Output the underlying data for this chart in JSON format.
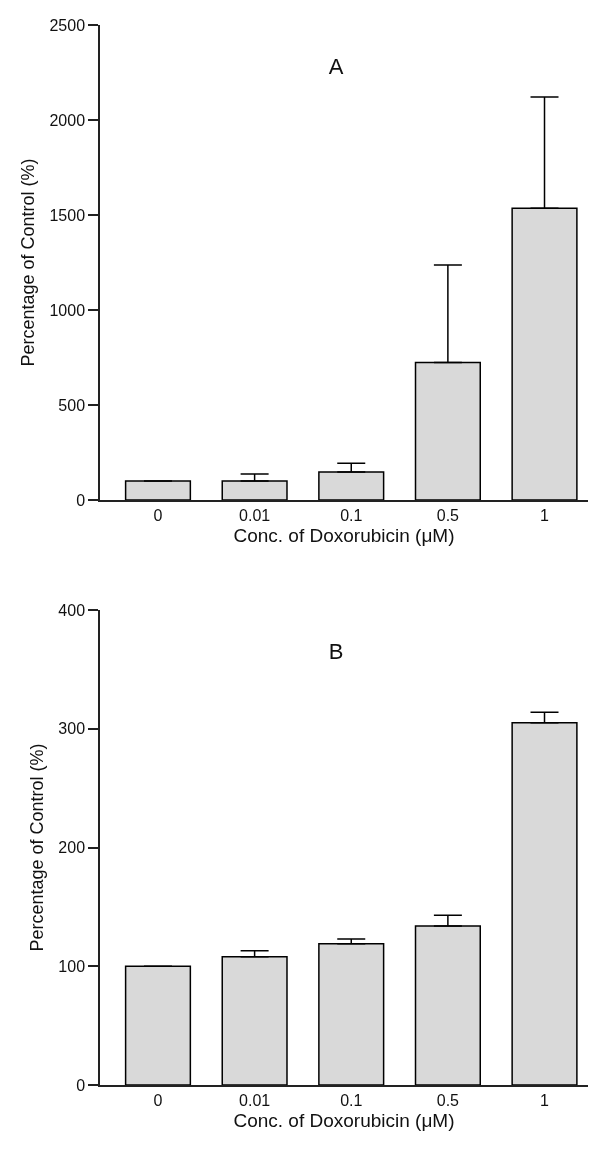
{
  "chart_data": [
    {
      "type": "bar",
      "title": "A",
      "xlabel": "Conc. of Doxorubicin (μM)",
      "ylabel": "Percentage of Control (%)",
      "categories": [
        "0",
        "0.01",
        "0.1",
        "0.5",
        "1"
      ],
      "values": [
        100,
        100,
        148,
        724,
        1536
      ],
      "errors": [
        null,
        [
          100,
          137
        ],
        [
          148,
          193
        ],
        [
          724,
          1237
        ],
        [
          1536,
          2121
        ]
      ],
      "color": "#d9d9d9",
      "ylim": [
        0,
        2500
      ],
      "yticks": [
        0,
        500,
        1000,
        1500,
        2000,
        2500
      ]
    },
    {
      "type": "bar",
      "title": "B",
      "xlabel": "Conc. of Doxorubicin (μM)",
      "ylabel": "Percentage of Control (%)",
      "categories": [
        "0",
        "0.01",
        "0.1",
        "0.5",
        "1"
      ],
      "values": [
        100,
        108,
        119,
        134,
        305
      ],
      "errors": [
        null,
        [
          108,
          113
        ],
        [
          119,
          123
        ],
        [
          134,
          143
        ],
        [
          305,
          314
        ]
      ],
      "color": "#d9d9d9",
      "ylim": [
        0,
        400
      ],
      "yticks": [
        0,
        100,
        200,
        300,
        400
      ]
    }
  ]
}
